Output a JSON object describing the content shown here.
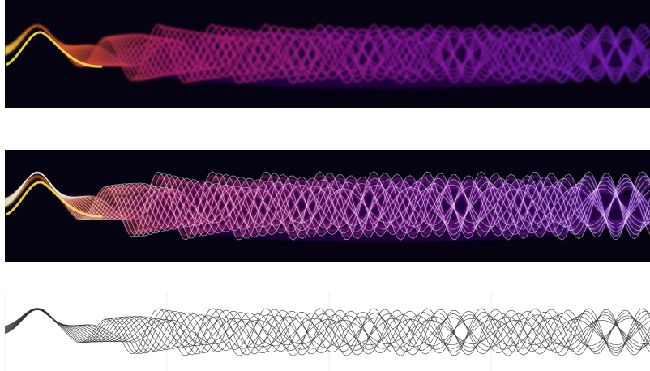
{
  "figure": {
    "panels": [
      {
        "id": "density",
        "kind": "density-heatmap",
        "colormap": "inferno",
        "background": "#050311"
      },
      {
        "id": "density-with-trajectories",
        "kind": "density-heatmap-with-overlay",
        "colormap": "inferno",
        "background": "#050311",
        "overlay_color": "#e8e8ee"
      },
      {
        "id": "trajectories",
        "kind": "line-trajectories",
        "background": "#ffffff",
        "line_color": "#333333",
        "grid_color": "#eeeeee"
      }
    ],
    "trajectory_count": 14
  }
}
